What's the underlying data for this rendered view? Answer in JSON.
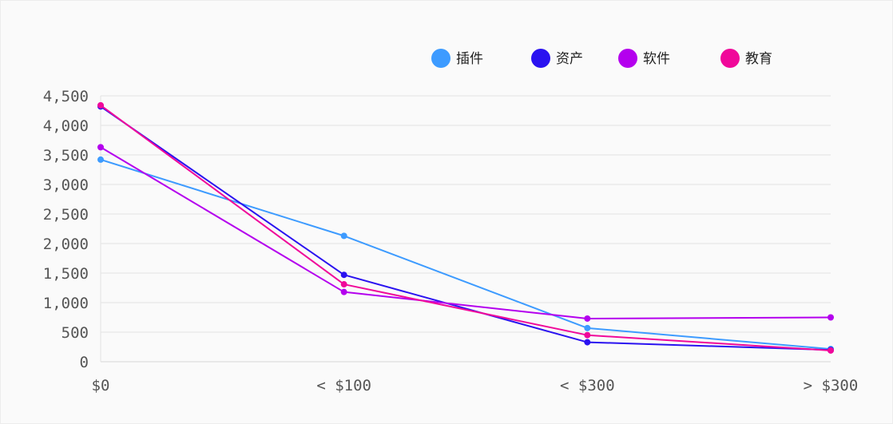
{
  "chart_data": {
    "type": "line",
    "categories": [
      "$0",
      "< $100",
      "< $300",
      "> $300"
    ],
    "ylim": [
      0,
      4500
    ],
    "y_ticks": [
      0,
      500,
      1000,
      1500,
      2000,
      2500,
      3000,
      3500,
      4000,
      4500
    ],
    "y_tick_labels": [
      "0",
      "500",
      "1,000",
      "1,500",
      "2,000",
      "2,500",
      "3,000",
      "3,500",
      "4,000",
      "4,500"
    ],
    "grid": true,
    "legend_position": "top-right",
    "series": [
      {
        "name": "插件",
        "color": "#3d9bff",
        "values": [
          3420,
          2130,
          570,
          215
        ]
      },
      {
        "name": "资产",
        "color": "#2a12f0",
        "values": [
          4320,
          1470,
          330,
          200
        ]
      },
      {
        "name": "软件",
        "color": "#b400ee",
        "values": [
          3630,
          1180,
          730,
          750
        ]
      },
      {
        "name": "教育",
        "color": "#f0089a",
        "values": [
          4340,
          1310,
          450,
          190
        ]
      }
    ]
  }
}
